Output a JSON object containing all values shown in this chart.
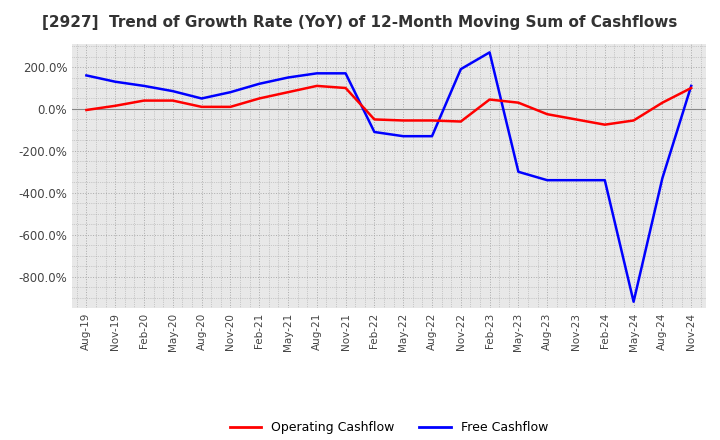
{
  "title": "[2927]  Trend of Growth Rate (YoY) of 12-Month Moving Sum of Cashflows",
  "title_fontsize": 11,
  "ylim": [
    -950,
    310
  ],
  "yticks": [
    200,
    0,
    -200,
    -400,
    -600,
    -800
  ],
  "background_color": "#ffffff",
  "plot_bg_color": "#e8e8e8",
  "operating_color": "#ff0000",
  "free_color": "#0000ff",
  "x_labels": [
    "Aug-19",
    "Nov-19",
    "Feb-20",
    "May-20",
    "Aug-20",
    "Nov-20",
    "Feb-21",
    "May-21",
    "Aug-21",
    "Nov-21",
    "Feb-22",
    "May-22",
    "Aug-22",
    "Nov-22",
    "Feb-23",
    "May-23",
    "Aug-23",
    "Nov-23",
    "Feb-24",
    "May-24",
    "Aug-24",
    "Nov-24"
  ],
  "operating_cashflow": [
    -5,
    15,
    40,
    40,
    10,
    10,
    50,
    80,
    110,
    100,
    -50,
    -55,
    -55,
    -60,
    45,
    30,
    -25,
    -50,
    -75,
    -55,
    30,
    100
  ],
  "free_cashflow": [
    160,
    130,
    110,
    85,
    50,
    80,
    120,
    150,
    170,
    170,
    -110,
    -130,
    -130,
    190,
    270,
    -300,
    -340,
    -340,
    -340,
    -920,
    -330,
    110
  ]
}
